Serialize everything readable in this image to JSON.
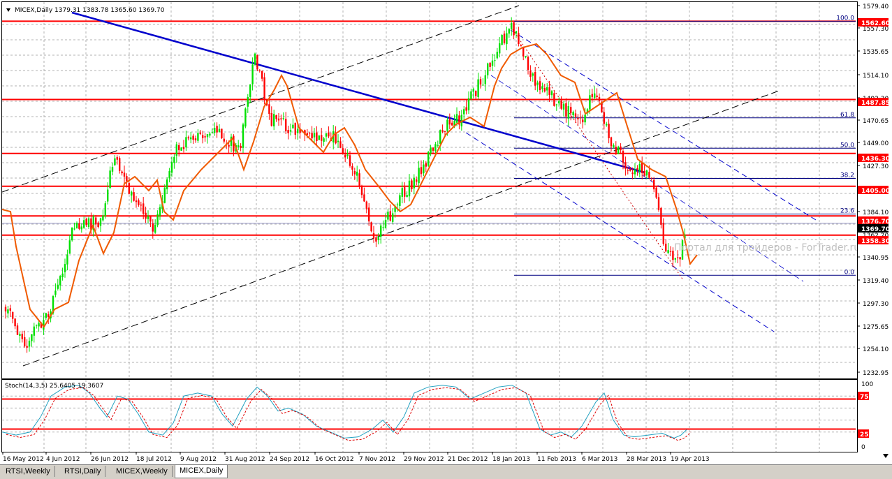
{
  "main_chart": {
    "header": "MICEX,Daily  1379.31 1383.78 1365.60 1369.70",
    "symbol": "MICEX",
    "timeframe": "Daily",
    "ohlc": {
      "open": 1379.31,
      "high": 1383.78,
      "low": 1365.6,
      "close": 1369.7
    },
    "price_axis": [
      "1579.40",
      "1557.30",
      "1535.65",
      "1514.10",
      "1492.30",
      "1470.65",
      "1449.00",
      "1427.30",
      "1405.00",
      "1384.10",
      "1340.95",
      "1319.40",
      "1297.30",
      "1275.65",
      "1254.10",
      "1232.95"
    ],
    "price_labels_partial": [
      "1362.20"
    ],
    "level_labels": [
      {
        "text": "1562.60",
        "color": "#ff0000"
      },
      {
        "text": "1487.85",
        "color": "#ff0000"
      },
      {
        "text": "1436.30",
        "color": "#ff0000"
      },
      {
        "text": "1405.00",
        "color": "#ff0000"
      },
      {
        "text": "1376.70",
        "color": "#ff0000"
      },
      {
        "text": "1369.70",
        "color": "#000000"
      },
      {
        "text": "1358.30",
        "color": "#ff0000"
      }
    ],
    "fib_labels": [
      "100.0",
      "61.8",
      "50.0",
      "38.2",
      "23.6",
      "0.0"
    ],
    "watermark": "Портал для трейдеров - ForTrader.ru",
    "colors": {
      "bull": "#00e000",
      "bear": "#ff0000",
      "ma": "#f05a00",
      "trend": "#0000cc",
      "level": "#ff0000",
      "fib": "#000080"
    }
  },
  "stoch": {
    "header": "Stoch(14,3,5) 25.6405 19.3607",
    "axis_labels": [
      "100",
      "75",
      "25",
      "0"
    ],
    "level_labels": [
      "75",
      "25"
    ]
  },
  "time_axis": [
    "16 May 2012",
    "4 Jun 2012",
    "26 Jun 2012",
    "18 Jul 2012",
    "9 Aug 2012",
    "31 Aug 2012",
    "24 Sep 2012",
    "16 Oct 2012",
    "7 Nov 2012",
    "29 Nov 2012",
    "21 Dec 2012",
    "18 Jan 2013",
    "11 Feb 2013",
    "6 Mar 2013",
    "28 Mar 2013",
    "19 Apr 2013"
  ],
  "tabs": [
    {
      "label": "RTSI,Weekly",
      "active": false
    },
    {
      "label": "RTSI,Daily",
      "active": false
    },
    {
      "label": "MICEX,Weekly",
      "active": false
    },
    {
      "label": "MICEX,Daily",
      "active": true
    }
  ]
}
